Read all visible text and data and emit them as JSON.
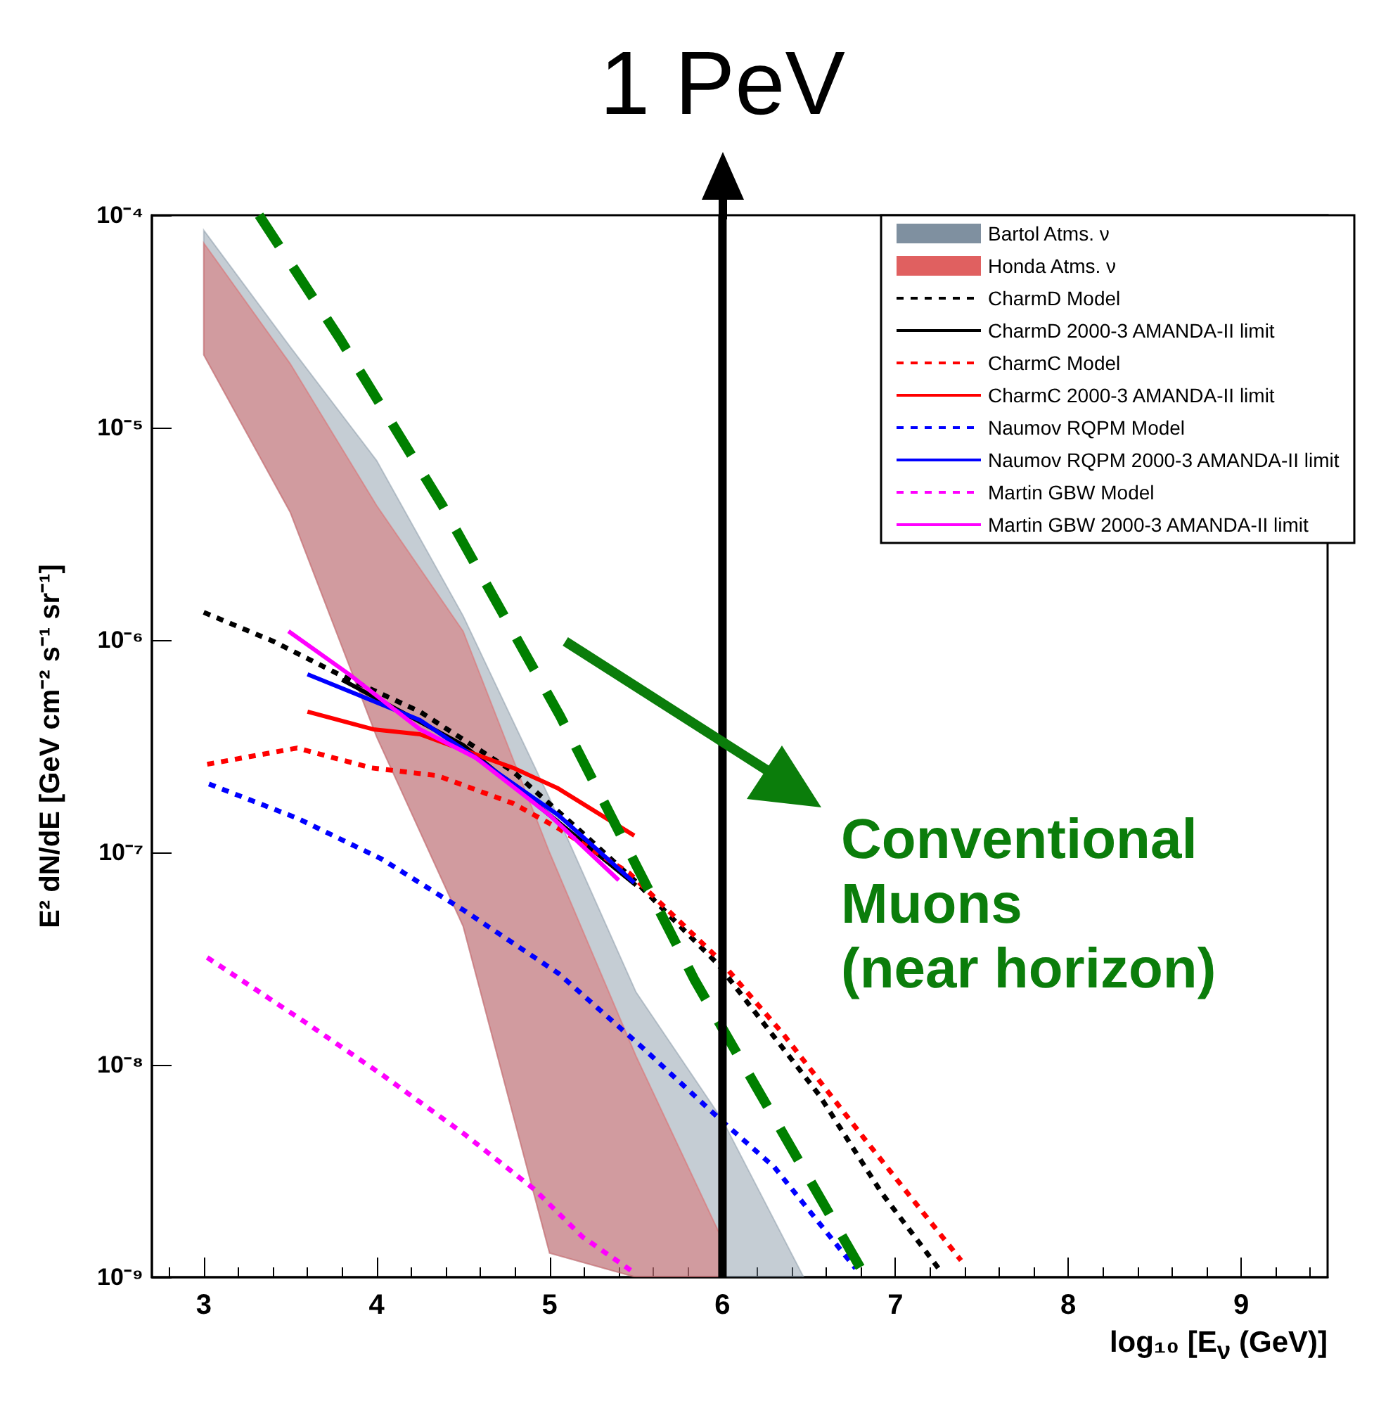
{
  "chart_data": {
    "type": "line",
    "xlabel": "log₁₀ [E$_{ν}$ (GeV)]",
    "ylabel": "E² dN/dE [GeV cm⁻² s⁻¹ sr⁻¹]",
    "xlim": [
      2.7,
      9.5
    ],
    "xticks": [
      3,
      4,
      5,
      6,
      7,
      8,
      9
    ],
    "ylim": [
      1e-09,
      0.0001
    ],
    "yticks": [
      {
        "value": 1e-09,
        "label": "10⁻⁹"
      },
      {
        "value": 1e-08,
        "label": "10⁻⁸"
      },
      {
        "value": 1e-07,
        "label": "10⁻⁷"
      },
      {
        "value": 1e-06,
        "label": "10⁻⁶"
      },
      {
        "value": 1e-05,
        "label": "10⁻⁵"
      },
      {
        "value": 0.0001,
        "label": "10⁻⁴"
      }
    ],
    "log": "y",
    "grid": false,
    "legend": "top right",
    "marker": "none",
    "series": [
      {
        "name": "Bartol Atms. ν",
        "type": "area",
        "color": "#7f90a0",
        "x": [
          3,
          3.5,
          4,
          4.5,
          5,
          5.5,
          6,
          6.47
        ],
        "values": [
          null,
          null,
          null,
          null,
          null,
          null,
          null,
          null
        ],
        "upper": [
          8.5e-05,
          2.4e-05,
          7e-06,
          1.3e-06,
          1.8e-07,
          2.2e-08,
          5.5e-09,
          1e-09
        ],
        "lower": [
          2.2e-05,
          4e-06,
          3.5e-07,
          4.5e-08,
          1.3e-09,
          1e-09,
          1e-09,
          1e-09
        ]
      },
      {
        "name": "Honda Atms. ν",
        "type": "area",
        "color": "#e06060",
        "x": [
          3,
          3.5,
          4,
          4.5,
          5,
          5.5,
          6
        ],
        "values": [
          null,
          null,
          null,
          null,
          null,
          null,
          null
        ],
        "upper": [
          7.4e-05,
          2e-05,
          4.3e-06,
          1.1e-06,
          1e-07,
          1.1e-08,
          1.5e-09
        ],
        "lower": [
          2.2e-05,
          4e-06,
          3.5e-07,
          4.5e-08,
          1.3e-09,
          1e-09,
          1e-09
        ]
      },
      {
        "name": "CharmD Model",
        "color": "#000000",
        "line_style": "dotted",
        "x": [
          3.0,
          3.41,
          3.78,
          4.25,
          4.79,
          5.16,
          5.49,
          5.97,
          6.56,
          6.92,
          7.25
        ],
        "values": [
          1.35e-06,
          9.8e-07,
          6.9e-07,
          4.6e-07,
          2.4e-07,
          1.3e-07,
          7.4e-08,
          3e-08,
          7.2e-09,
          2.5e-09,
          1.1e-09
        ]
      },
      {
        "name": "CharmD 2000-3 AMANDA-II limit",
        "color": "#000000",
        "line_style": "solid",
        "x": [
          3.8,
          4.5,
          5.0,
          5.5
        ],
        "values": [
          6.5e-07,
          3.2e-07,
          1.5e-07,
          7e-08
        ]
      },
      {
        "name": "CharmC Model",
        "color": "#ff0000",
        "line_style": "dotted",
        "x": [
          3.02,
          3.54,
          3.97,
          4.35,
          4.79,
          5.05,
          5.46,
          5.97,
          6.35,
          6.82,
          7.38
        ],
        "values": [
          2.6e-07,
          3.1e-07,
          2.5e-07,
          2.3e-07,
          1.7e-07,
          1.3e-07,
          8e-08,
          3.2e-08,
          1.4e-08,
          4.5e-09,
          1.2e-09
        ]
      },
      {
        "name": "CharmC 2000-3 AMANDA-II limit",
        "color": "#ff0000",
        "line_style": "solid",
        "x": [
          3.6,
          3.98,
          4.25,
          4.79,
          5.05,
          5.49
        ],
        "values": [
          4.6e-07,
          3.8e-07,
          3.6e-07,
          2.5e-07,
          2e-07,
          1.2e-07
        ]
      },
      {
        "name": "Naumov RQPM Model",
        "color": "#0000ff",
        "line_style": "dotted",
        "x": [
          3.03,
          3.54,
          4.03,
          4.51,
          5.05,
          5.54,
          5.99,
          6.3,
          6.77
        ],
        "values": [
          2.1e-07,
          1.45e-07,
          9.3e-08,
          5.3e-08,
          2.7e-08,
          1.2e-08,
          5.5e-09,
          3.3e-09,
          1.1e-09
        ]
      },
      {
        "name": "Naumov RQPM 2000-3 AMANDA-II limit",
        "color": "#0000ff",
        "line_style": "solid",
        "x": [
          3.6,
          4.25,
          4.6,
          5.05,
          5.49
        ],
        "values": [
          6.9e-07,
          4.2e-07,
          2.7e-07,
          1.5e-07,
          7.2e-08
        ]
      },
      {
        "name": "Martin GBW Model",
        "color": "#ff00ff",
        "line_style": "dotted",
        "x": [
          3.02,
          3.58,
          4.03,
          4.51,
          4.91,
          5.19,
          5.49
        ],
        "values": [
          3.2e-08,
          1.6e-08,
          9e-09,
          4.7e-09,
          2.6e-09,
          1.55e-09,
          1.05e-09
        ]
      },
      {
        "name": "Martin GBW 2000-3 AMANDA-II limit",
        "color": "#ff00ff",
        "line_style": "solid",
        "x": [
          3.49,
          3.84,
          4.25,
          4.57,
          5.0,
          5.4
        ],
        "values": [
          1.1e-06,
          6.9e-07,
          3.8e-07,
          2.8e-07,
          1.5e-07,
          7.4e-08
        ]
      },
      {
        "color": "#008000",
        "line_style": "dashed",
        "x": [
          3.32,
          3.79,
          4.38,
          5.06,
          5.84,
          6.8
        ],
        "values": [
          0.0001,
          2.6e-05,
          4.3e-06,
          4.4e-07,
          2.5e-08,
          1.1e-09
        ]
      }
    ],
    "ref_lines": [
      {
        "axis": "x",
        "value": 6,
        "label": "1 PeV",
        "color": "#000000"
      }
    ],
    "annotations": [
      "Conventional\nMuons\n(near horizon)"
    ]
  }
}
